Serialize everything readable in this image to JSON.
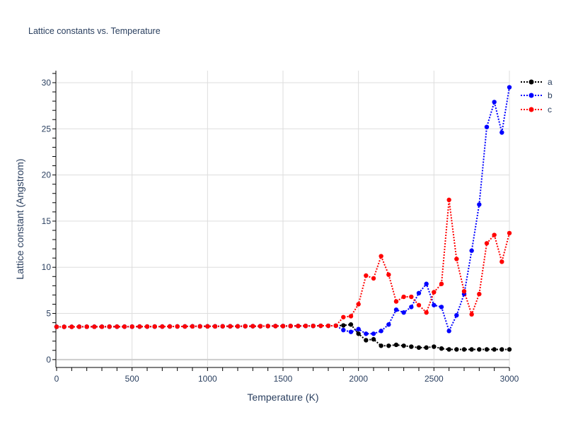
{
  "chart_data": {
    "type": "line",
    "title": "Lattice constants vs. Temperature",
    "xlabel": "Temperature (K)",
    "ylabel": "Lattice constant (Angstrom)",
    "xlim": [
      0,
      3000
    ],
    "ylim": [
      -0.7,
      31.3
    ],
    "xticks": [
      0,
      500,
      1000,
      1500,
      2000,
      2500,
      3000
    ],
    "yticks": [
      0,
      5,
      10,
      15,
      20,
      25,
      30
    ],
    "grid": true,
    "legend_position": "top-right-outside",
    "line_style": "dotted with circle markers",
    "x": [
      0,
      50,
      100,
      150,
      200,
      250,
      300,
      350,
      400,
      450,
      500,
      550,
      600,
      650,
      700,
      750,
      800,
      850,
      900,
      950,
      1000,
      1050,
      1100,
      1150,
      1200,
      1250,
      1300,
      1350,
      1400,
      1450,
      1500,
      1550,
      1600,
      1650,
      1700,
      1750,
      1800,
      1850,
      1900,
      1950,
      2000,
      2050,
      2100,
      2150,
      2200,
      2250,
      2300,
      2350,
      2400,
      2450,
      2500,
      2550,
      2600,
      2650,
      2700,
      2750,
      2800,
      2850,
      2900,
      2950,
      3000
    ],
    "series": [
      {
        "name": "a",
        "color": "#000000",
        "values": [
          3.55,
          3.55,
          3.55,
          3.56,
          3.56,
          3.56,
          3.56,
          3.57,
          3.57,
          3.57,
          3.57,
          3.58,
          3.58,
          3.58,
          3.58,
          3.59,
          3.59,
          3.59,
          3.6,
          3.6,
          3.6,
          3.6,
          3.61,
          3.61,
          3.61,
          3.62,
          3.62,
          3.62,
          3.63,
          3.63,
          3.63,
          3.64,
          3.64,
          3.65,
          3.65,
          3.66,
          3.66,
          3.67,
          3.7,
          3.8,
          2.8,
          2.1,
          2.2,
          1.5,
          1.5,
          1.6,
          1.5,
          1.4,
          1.3,
          1.3,
          1.4,
          1.2,
          1.1,
          1.1,
          1.1,
          1.1,
          1.1,
          1.1,
          1.1,
          1.1,
          1.1
        ]
      },
      {
        "name": "b",
        "color": "#0000ff",
        "values": [
          3.55,
          3.55,
          3.55,
          3.56,
          3.56,
          3.56,
          3.56,
          3.57,
          3.57,
          3.57,
          3.57,
          3.58,
          3.58,
          3.58,
          3.58,
          3.59,
          3.59,
          3.59,
          3.6,
          3.6,
          3.6,
          3.6,
          3.61,
          3.61,
          3.61,
          3.62,
          3.62,
          3.62,
          3.63,
          3.63,
          3.63,
          3.64,
          3.64,
          3.65,
          3.65,
          3.66,
          3.66,
          3.67,
          3.2,
          3.0,
          3.3,
          2.8,
          2.8,
          3.1,
          3.8,
          5.4,
          5.1,
          5.7,
          7.2,
          8.2,
          5.9,
          5.7,
          3.1,
          4.8,
          7.1,
          11.8,
          16.8,
          25.2,
          27.9,
          24.6,
          29.5
        ]
      },
      {
        "name": "c",
        "color": "#ff0000",
        "values": [
          3.55,
          3.55,
          3.55,
          3.56,
          3.56,
          3.56,
          3.56,
          3.57,
          3.57,
          3.57,
          3.57,
          3.58,
          3.58,
          3.58,
          3.58,
          3.59,
          3.59,
          3.59,
          3.6,
          3.6,
          3.6,
          3.6,
          3.61,
          3.61,
          3.61,
          3.62,
          3.62,
          3.62,
          3.63,
          3.63,
          3.63,
          3.64,
          3.64,
          3.65,
          3.65,
          3.66,
          3.66,
          3.67,
          4.6,
          4.7,
          6.0,
          9.1,
          8.8,
          11.2,
          9.2,
          6.3,
          6.8,
          6.8,
          5.9,
          5.1,
          7.3,
          8.2,
          17.3,
          10.9,
          7.4,
          4.9,
          7.1,
          12.6,
          13.5,
          10.6,
          13.7
        ]
      }
    ]
  },
  "colors": {
    "text": "#2a3f5f",
    "grid": "#dddddd",
    "zero_line": "#cccccc",
    "axis_line": "#000000",
    "background": "#ffffff"
  }
}
